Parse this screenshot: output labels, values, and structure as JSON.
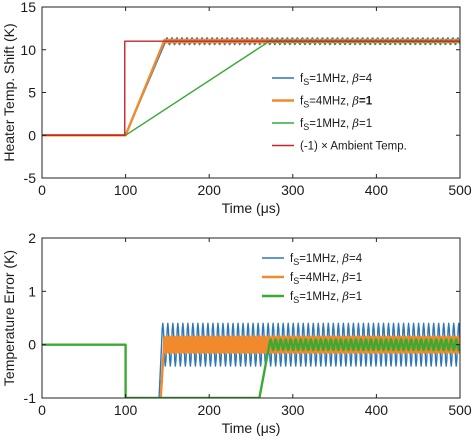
{
  "chart_data": [
    {
      "type": "line",
      "xlabel": "Time (μs)",
      "ylabel": "Heater Temp. Shift (K)",
      "xlim": [
        0,
        500
      ],
      "ylim": [
        -5,
        15
      ],
      "xticks": [
        0,
        100,
        200,
        300,
        400,
        500
      ],
      "yticks": [
        -5,
        0,
        5,
        10,
        15
      ],
      "grid": false,
      "legend_position": "right",
      "series": [
        {
          "name": "f_S=1MHz, β=4",
          "legend": {
            "pre": "f",
            "sub": "S",
            "mid": "=1MHz, ",
            "greek": "β",
            "post": "=4"
          },
          "color": "#2f77b6",
          "bold": false,
          "x": [
            0,
            100,
            148,
            500
          ],
          "y": [
            0,
            0,
            11,
            11
          ],
          "oscillation": {
            "from": 148,
            "period": 6,
            "amplitude": 0.4
          }
        },
        {
          "name": "f_S=4MHz, β=1",
          "legend": {
            "pre": "f",
            "sub": "S",
            "mid": "=4MHz, ",
            "greek": "β",
            "post": "=1"
          },
          "color": "#f08a2c",
          "bold": true,
          "x": [
            0,
            100,
            146,
            500
          ],
          "y": [
            0,
            0,
            11,
            11
          ],
          "oscillation": {
            "from": 146,
            "period": 3,
            "amplitude": 0.15
          }
        },
        {
          "name": "f_S=1MHz, β=1",
          "legend": {
            "pre": "f",
            "sub": "S",
            "mid": "=1MHz, ",
            "greek": "β",
            "post": "=1"
          },
          "color": "#3aaa35",
          "bold": false,
          "x": [
            0,
            100,
            272,
            500
          ],
          "y": [
            0,
            0,
            11,
            11
          ],
          "oscillation": {
            "from": 272,
            "period": 6,
            "amplitude": 0.12
          }
        },
        {
          "name": "(-1) × Ambient Temp.",
          "legend": {
            "pre": "(-1) × Ambient Temp.",
            "sub": "",
            "mid": "",
            "greek": "",
            "post": ""
          },
          "color": "#c8252c",
          "bold": false,
          "x": [
            0,
            99,
            99,
            500
          ],
          "y": [
            0,
            0,
            11,
            11
          ]
        }
      ]
    },
    {
      "type": "line",
      "xlabel": "Time (μs)",
      "ylabel": "Temperature Error (K)",
      "xlim": [
        0,
        500
      ],
      "ylim": [
        -1,
        2
      ],
      "xticks": [
        0,
        100,
        200,
        300,
        400,
        500
      ],
      "yticks": [
        -1,
        0,
        1,
        2
      ],
      "grid": false,
      "legend_position": "top-right",
      "series": [
        {
          "name": "f_S=1MHz, β=4",
          "legend": {
            "pre": "f",
            "sub": "S",
            "mid": "=1MHz, ",
            "greek": "β",
            "post": "=4"
          },
          "color": "#2f77b6",
          "bold": false,
          "x": [
            140,
            143,
            500
          ],
          "y": [
            -1,
            0,
            0
          ],
          "oscillation": {
            "from": 143,
            "period": 6,
            "amplitude": 0.4
          }
        },
        {
          "name": "f_S=4MHz, β=1",
          "legend": {
            "pre": "f",
            "sub": "S",
            "mid": "=4MHz, ",
            "greek": "β",
            "post": "=1"
          },
          "color": "#f08a2c",
          "bold": true,
          "x": [
            142,
            146,
            500
          ],
          "y": [
            -1,
            0,
            0
          ],
          "oscillation": {
            "from": 146,
            "period": 3,
            "amplitude": 0.15
          }
        },
        {
          "name": "f_S=1MHz, β=1",
          "legend": {
            "pre": "f",
            "sub": "S",
            "mid": "=1MHz, ",
            "greek": "β",
            "post": "=1"
          },
          "color": "#3aaa35",
          "bold": true,
          "x": [
            0,
            100,
            100,
            260,
            272,
            500
          ],
          "y": [
            0,
            0,
            -1,
            -1,
            0,
            0
          ],
          "oscillation": {
            "from": 272,
            "period": 6,
            "amplitude": 0.1
          }
        }
      ]
    }
  ]
}
